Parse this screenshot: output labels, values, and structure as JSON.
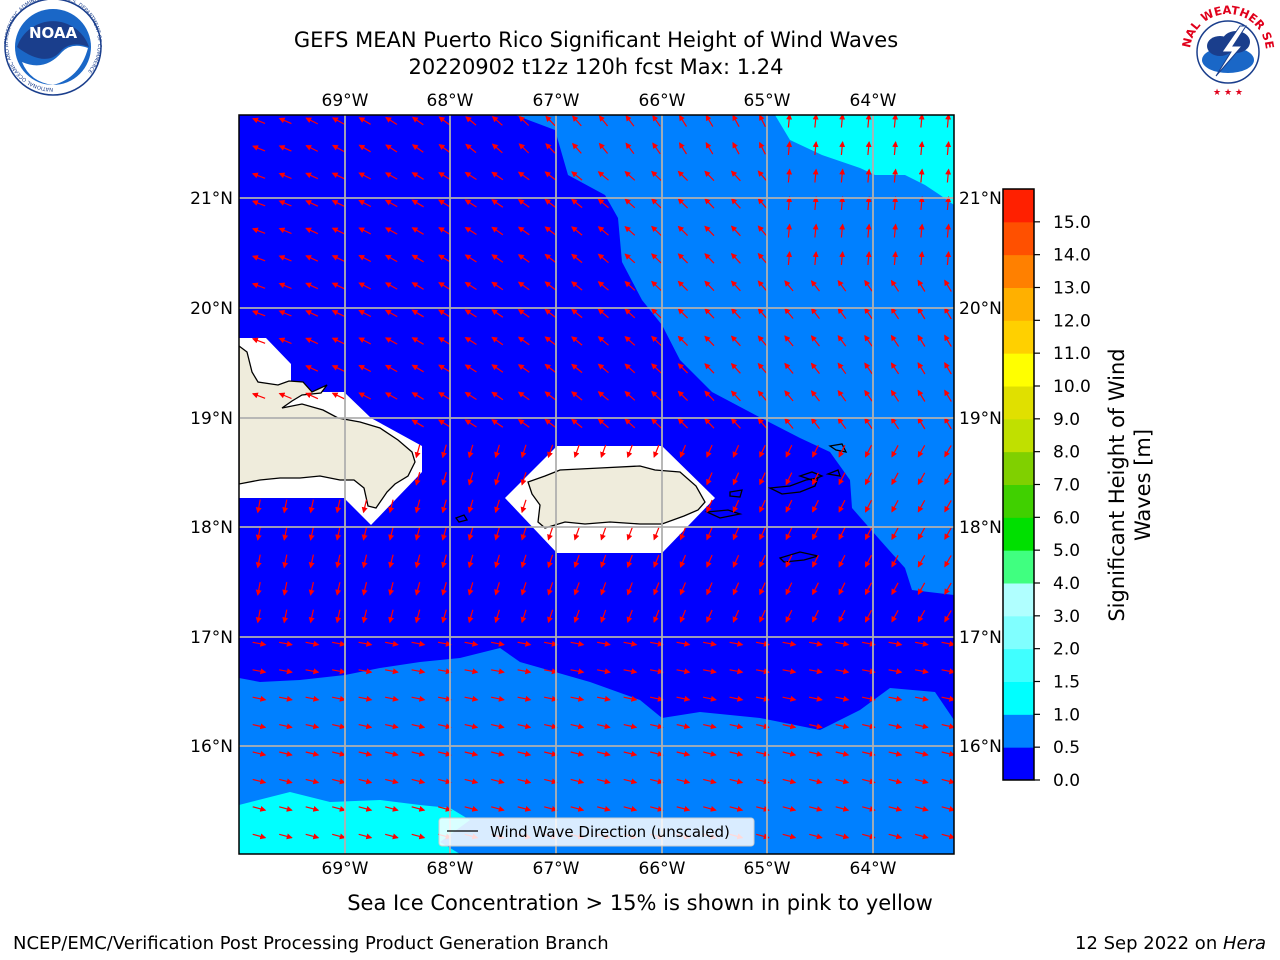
{
  "header": {
    "title_line1": "GEFS MEAN Puerto Rico Significant Height of Wind Waves",
    "title_line2": "20220902 t12z 120h fcst   Max: 1.24"
  },
  "logos": {
    "noaa": {
      "text": "NOAA",
      "ring_text": "NATIONAL OCEANIC AND ATMOSPHERIC ADMINISTRATION · U.S. DEPARTMENT OF COMMERCE"
    },
    "nws": {
      "ring_text": "NATIONAL WEATHER SERVICE"
    }
  },
  "map": {
    "lon_labels": [
      "69°W",
      "68°W",
      "67°W",
      "66°W",
      "65°W",
      "64°W"
    ],
    "lat_labels": [
      "21°N",
      "20°N",
      "19°N",
      "18°N",
      "17°N",
      "16°N"
    ],
    "extent": {
      "lon_min": -70.0,
      "lon_max": -63.25,
      "lat_min": 15.0,
      "lat_max": 21.75
    },
    "legend_label": "Wind Wave Direction (unscaled)",
    "colors": {
      "land": "#efecdc",
      "arrow": "#ff0000",
      "grid": "#b0b0b0"
    }
  },
  "colorbar": {
    "label_line1": "Significant Height of Wind",
    "label_line2": "Waves [m]",
    "ticks": [
      "0.0",
      "0.5",
      "1.0",
      "1.5",
      "2.0",
      "3.0",
      "4.0",
      "5.0",
      "6.0",
      "7.0",
      "8.0",
      "9.0",
      "10.0",
      "11.0",
      "12.0",
      "13.0",
      "14.0",
      "15.0"
    ],
    "colors": [
      "#0000ff",
      "#0080ff",
      "#00ffff",
      "#40ffff",
      "#80ffff",
      "#b0ffff",
      "#40ff80",
      "#00e000",
      "#40d000",
      "#80d000",
      "#c0e000",
      "#e0e000",
      "#ffff00",
      "#ffd000",
      "#ffb000",
      "#ff8000",
      "#ff5000",
      "#ff2000"
    ]
  },
  "footer": {
    "subtitle": "Sea Ice Concentration > 15% is shown in pink to yellow",
    "left": "NCEP/EMC/Verification Post Processing Product Generation Branch",
    "date": "12 Sep 2022 on ",
    "machine": "Hera"
  }
}
